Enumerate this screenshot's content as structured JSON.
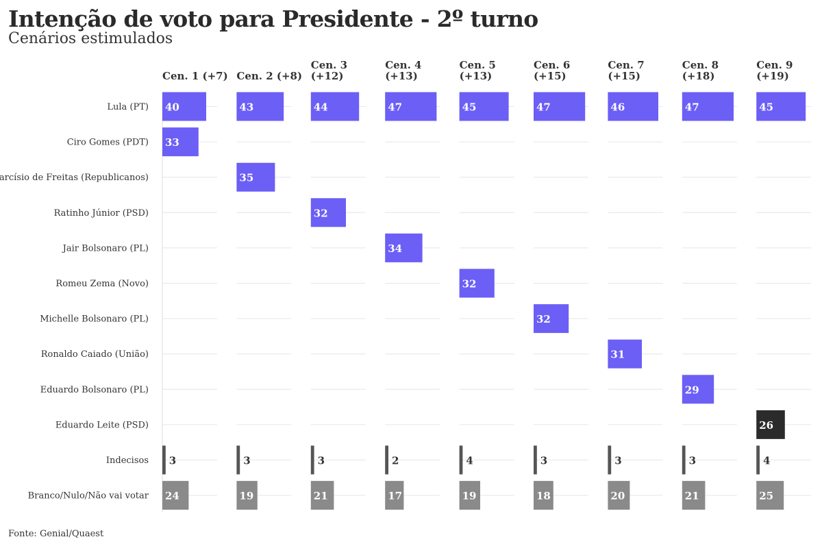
{
  "title": "Intenção de voto para Presidente - 2º turno",
  "subtitle": "Cenários estimulados",
  "source": "Fonte: Genial/Quaest",
  "colors": {
    "lula": "#6c5ff5",
    "opponent": "#6c5ff5",
    "highlight": "#2b2b2b",
    "undecided": "#555555",
    "blank": "#8a8a8a",
    "grid": "#e6e6e6"
  },
  "chart_data": {
    "type": "bar",
    "title": "Intenção de voto para Presidente - 2º turno",
    "subtitle": "Cenários estimulados",
    "rows": [
      "Lula (PT)",
      "Ciro Gomes (PDT)",
      "Tarcísio de Freitas (Republicanos)",
      "Ratinho Júnior (PSD)",
      "Jair Bolsonaro (PL)",
      "Romeu Zema (Novo)",
      "Michelle Bolsonaro (PL)",
      "Ronaldo Caiado (União)",
      "Eduardo Bolsonaro (PL)",
      "Eduardo Leite (PSD)",
      "Indecisos",
      "Branco/Nulo/Não vai votar"
    ],
    "scenarios": [
      {
        "header": [
          "Cen. 1 (+7)"
        ],
        "lula": 40,
        "opponent": "Ciro Gomes (PDT)",
        "opponent_value": 33,
        "undecided": 3,
        "blank": 24
      },
      {
        "header": [
          "Cen. 2 (+8)"
        ],
        "lula": 43,
        "opponent": "Tarcísio de Freitas (Republicanos)",
        "opponent_value": 35,
        "undecided": 3,
        "blank": 19
      },
      {
        "header": [
          "Cen. 3",
          "(+12)"
        ],
        "lula": 44,
        "opponent": "Ratinho Júnior (PSD)",
        "opponent_value": 32,
        "undecided": 3,
        "blank": 21
      },
      {
        "header": [
          "Cen. 4",
          "(+13)"
        ],
        "lula": 47,
        "opponent": "Jair Bolsonaro (PL)",
        "opponent_value": 34,
        "undecided": 2,
        "blank": 17
      },
      {
        "header": [
          "Cen. 5",
          "(+13)"
        ],
        "lula": 45,
        "opponent": "Romeu Zema (Novo)",
        "opponent_value": 32,
        "undecided": 4,
        "blank": 19
      },
      {
        "header": [
          "Cen. 6",
          "(+15)"
        ],
        "lula": 47,
        "opponent": "Michelle Bolsonaro (PL)",
        "opponent_value": 32,
        "undecided": 3,
        "blank": 18
      },
      {
        "header": [
          "Cen. 7",
          "(+15)"
        ],
        "lula": 46,
        "opponent": "Ronaldo Caiado (União)",
        "opponent_value": 31,
        "undecided": 3,
        "blank": 20
      },
      {
        "header": [
          "Cen. 8",
          "(+18)"
        ],
        "lula": 47,
        "opponent": "Eduardo Bolsonaro (PL)",
        "opponent_value": 29,
        "undecided": 3,
        "blank": 21
      },
      {
        "header": [
          "Cen. 9",
          "(+19)"
        ],
        "lula": 45,
        "opponent": "Eduardo Leite (PSD)",
        "opponent_value": 26,
        "undecided": 4,
        "blank": 25
      }
    ],
    "xlim": [
      0,
      50
    ],
    "grid": true
  }
}
